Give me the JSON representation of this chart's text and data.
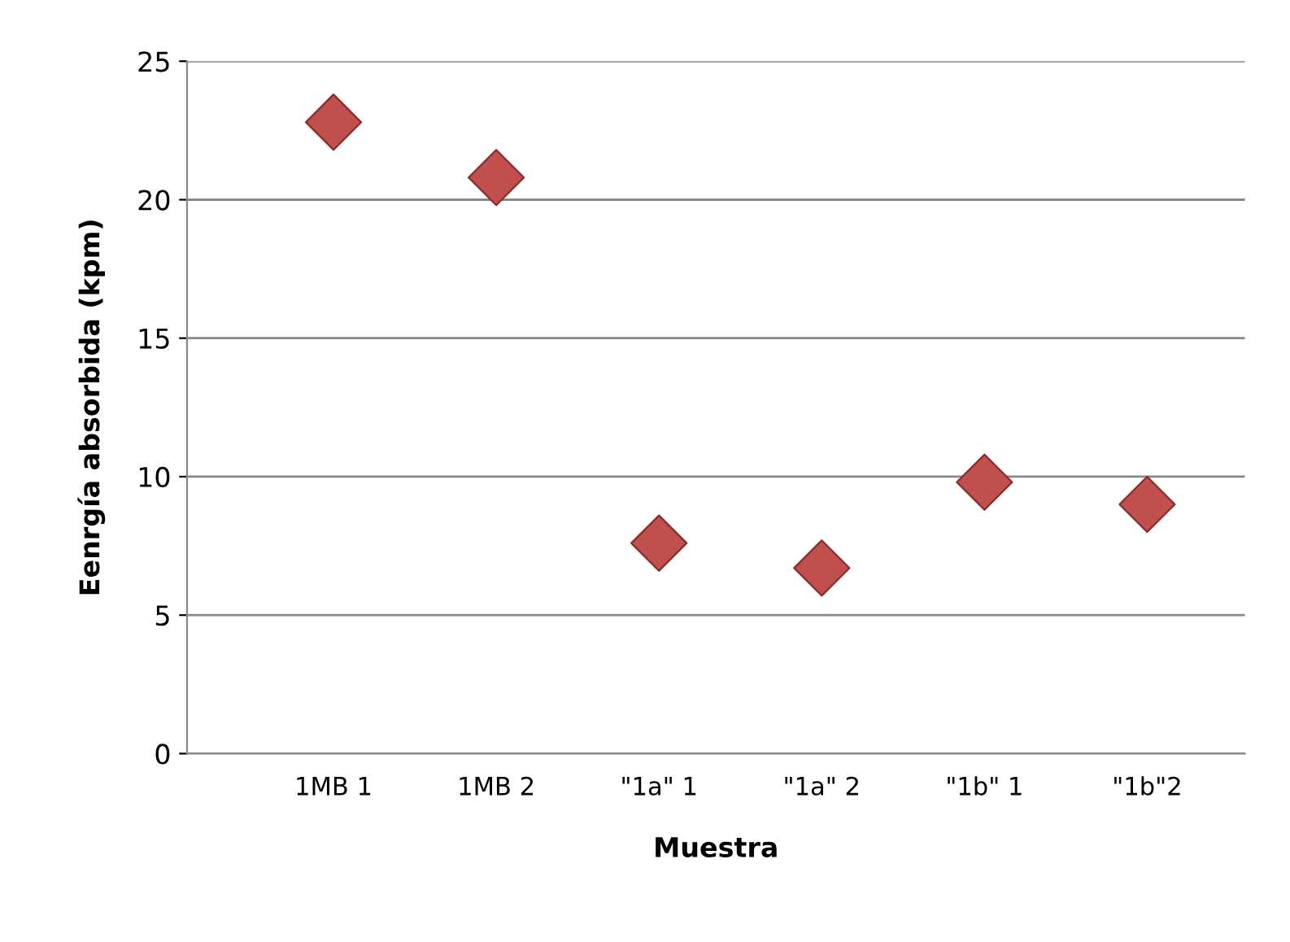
{
  "chart_data": {
    "type": "scatter",
    "xlabel": "Muestra",
    "ylabel": "Eenrgía absorbida (kpm)",
    "categories": [
      "1MB 1",
      "1MB 2",
      "\"1a\" 1",
      "\"1a\" 2",
      "\"1b\" 1",
      "\"1b\"2"
    ],
    "series": [
      {
        "color": "#c0504d",
        "values": [
          22.8,
          20.8,
          7.6,
          6.7,
          9.8,
          9.0
        ]
      }
    ],
    "ylim": [
      0,
      25
    ],
    "yticks": [
      0,
      5,
      10,
      15,
      20,
      25
    ],
    "grid": "y",
    "marker": "diamond",
    "legend": false
  }
}
